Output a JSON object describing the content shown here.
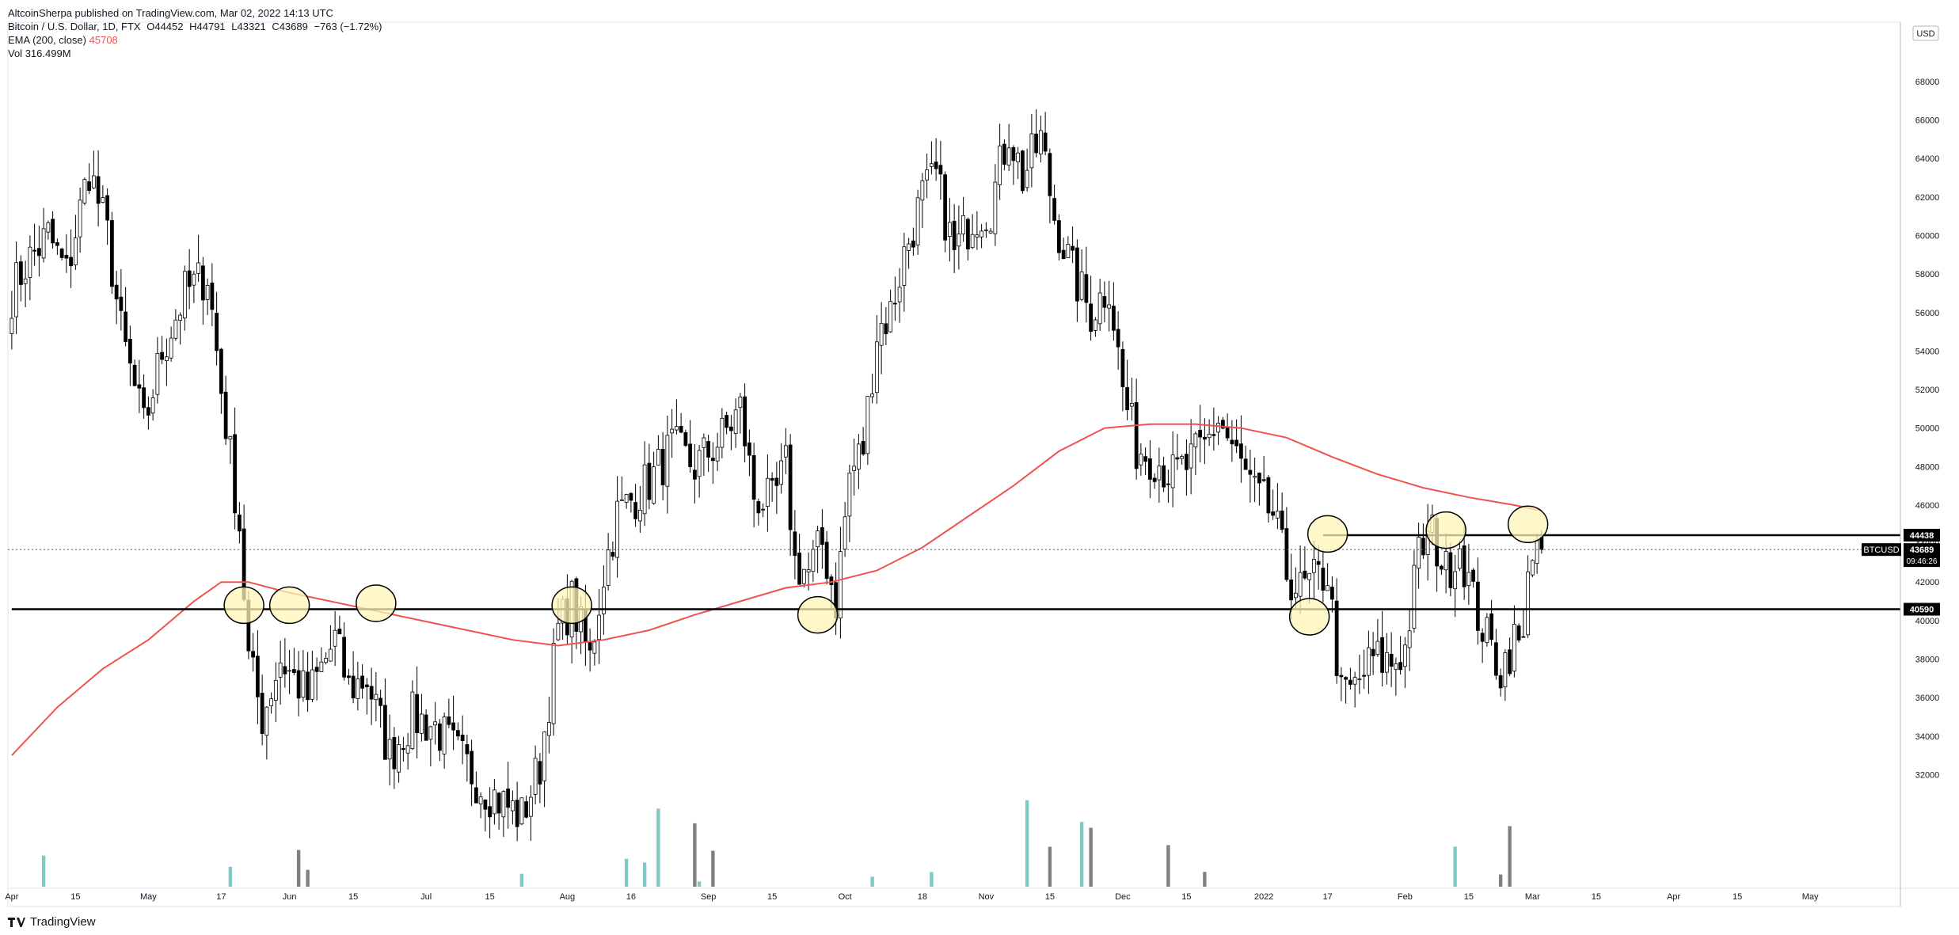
{
  "header": {
    "publisher": "AltcoinSherpa published on TradingView.com, Mar 02, 2022 14:13 UTC",
    "symbol": "Bitcoin / U.S. Dollar, 1D, FTX",
    "open": "O44452",
    "high": "H44791",
    "low": "L43321",
    "close": "C43689",
    "change": "−763 (−1.72%)",
    "ema_label": "EMA (200, close)",
    "ema_value": "45708",
    "vol_label": "Vol",
    "vol_value": "316.499M"
  },
  "footer": {
    "brand": "TradingView"
  },
  "colors": {
    "up": "#000000",
    "down": "#000000",
    "ema": "#ef5350",
    "vol_up": "#7fcbc4",
    "vol_down": "#808080",
    "highlight": "#fff5b8"
  },
  "chart_data": {
    "type": "candlestick",
    "title": "Bitcoin / U.S. Dollar, 1D, FTX",
    "currency": "USD",
    "ylim": [
      27000,
      71000
    ],
    "y_ticks": [
      32000,
      34000,
      36000,
      38000,
      40000,
      42000,
      44000,
      46000,
      48000,
      50000,
      52000,
      54000,
      56000,
      58000,
      60000,
      62000,
      64000,
      66000,
      68000
    ],
    "y_tick_labels": [
      "32000",
      "34000",
      "36000",
      "38000",
      "40000",
      "42000",
      "44000",
      "46000",
      "48000",
      "50000",
      "52000",
      "54000",
      "56000",
      "58000",
      "60000",
      "62000",
      "64000",
      "66000",
      "68000"
    ],
    "x_ticks": [
      {
        "day": 0,
        "label": "Apr"
      },
      {
        "day": 14,
        "label": "15"
      },
      {
        "day": 30,
        "label": "May"
      },
      {
        "day": 46,
        "label": "17"
      },
      {
        "day": 61,
        "label": "Jun"
      },
      {
        "day": 75,
        "label": "15"
      },
      {
        "day": 91,
        "label": "Jul"
      },
      {
        "day": 105,
        "label": "15"
      },
      {
        "day": 122,
        "label": "Aug"
      },
      {
        "day": 136,
        "label": "16"
      },
      {
        "day": 153,
        "label": "Sep"
      },
      {
        "day": 167,
        "label": "15"
      },
      {
        "day": 183,
        "label": "Oct"
      },
      {
        "day": 200,
        "label": "18"
      },
      {
        "day": 214,
        "label": "Nov"
      },
      {
        "day": 228,
        "label": "15"
      },
      {
        "day": 244,
        "label": "Dec"
      },
      {
        "day": 258,
        "label": "15"
      },
      {
        "day": 275,
        "label": "2022"
      },
      {
        "day": 289,
        "label": "17"
      },
      {
        "day": 306,
        "label": "Feb"
      },
      {
        "day": 320,
        "label": "15"
      },
      {
        "day": 334,
        "label": "Mar"
      },
      {
        "day": 348,
        "label": "15"
      },
      {
        "day": 365,
        "label": "Apr"
      },
      {
        "day": 379,
        "label": "15"
      },
      {
        "day": 395,
        "label": "May"
      }
    ],
    "price_anchors": [
      [
        0,
        57000
      ],
      [
        3,
        58500
      ],
      [
        8,
        60000
      ],
      [
        12,
        58000
      ],
      [
        17,
        63500
      ],
      [
        21,
        60000
      ],
      [
        24,
        55000
      ],
      [
        29,
        50000
      ],
      [
        33,
        54000
      ],
      [
        38,
        57000
      ],
      [
        43,
        58000
      ],
      [
        46,
        52000
      ],
      [
        50,
        45000
      ],
      [
        52,
        38000
      ],
      [
        55,
        35000
      ],
      [
        59,
        38000
      ],
      [
        65,
        36000
      ],
      [
        71,
        39000
      ],
      [
        74,
        36500
      ],
      [
        78,
        37000
      ],
      [
        83,
        33000
      ],
      [
        88,
        35000
      ],
      [
        93,
        34500
      ],
      [
        98,
        33000
      ],
      [
        103,
        31500
      ],
      [
        108,
        30500
      ],
      [
        112,
        29800
      ],
      [
        116,
        32500
      ],
      [
        120,
        39500
      ],
      [
        123,
        41000
      ],
      [
        127,
        38000
      ],
      [
        130,
        42500
      ],
      [
        133,
        45500
      ],
      [
        137,
        46500
      ],
      [
        141,
        47500
      ],
      [
        145,
        49000
      ],
      [
        150,
        48000
      ],
      [
        156,
        49500
      ],
      [
        160,
        51000
      ],
      [
        163,
        46500
      ],
      [
        167,
        46000
      ],
      [
        170,
        48000
      ],
      [
        172,
        43000
      ],
      [
        175,
        42500
      ],
      [
        178,
        44000
      ],
      [
        181,
        41000
      ],
      [
        184,
        47500
      ],
      [
        187,
        49000
      ],
      [
        190,
        55000
      ],
      [
        193,
        56000
      ],
      [
        196,
        59000
      ],
      [
        200,
        62000
      ],
      [
        203,
        63000
      ],
      [
        207,
        59000
      ],
      [
        211,
        61000
      ],
      [
        215,
        61500
      ],
      [
        219,
        65500
      ],
      [
        222,
        63000
      ],
      [
        226,
        65000
      ],
      [
        229,
        61000
      ],
      [
        233,
        58000
      ],
      [
        237,
        56000
      ],
      [
        241,
        57500
      ],
      [
        244,
        52000
      ],
      [
        247,
        49000
      ],
      [
        251,
        48500
      ],
      [
        255,
        47500
      ],
      [
        258,
        48000
      ],
      [
        262,
        49000
      ],
      [
        265,
        50500
      ],
      [
        269,
        48500
      ],
      [
        273,
        46500
      ],
      [
        277,
        45500
      ],
      [
        280,
        42500
      ],
      [
        283,
        41500
      ],
      [
        286,
        42000
      ],
      [
        289,
        42500
      ],
      [
        292,
        36000
      ],
      [
        295,
        36500
      ],
      [
        299,
        38000
      ],
      [
        303,
        37800
      ],
      [
        306,
        38500
      ],
      [
        309,
        43500
      ],
      [
        312,
        44500
      ],
      [
        315,
        42500
      ],
      [
        318,
        44000
      ],
      [
        321,
        41000
      ],
      [
        324,
        39000
      ],
      [
        327,
        37500
      ],
      [
        330,
        39000
      ],
      [
        332,
        38500
      ],
      [
        333,
        43500
      ],
      [
        336,
        43689
      ]
    ],
    "ema200": [
      [
        0,
        33000
      ],
      [
        10,
        35500
      ],
      [
        20,
        37500
      ],
      [
        30,
        39000
      ],
      [
        40,
        41000
      ],
      [
        46,
        42000
      ],
      [
        52,
        42000
      ],
      [
        60,
        41500
      ],
      [
        70,
        41000
      ],
      [
        80,
        40500
      ],
      [
        90,
        40000
      ],
      [
        100,
        39500
      ],
      [
        110,
        39000
      ],
      [
        120,
        38700
      ],
      [
        130,
        39000
      ],
      [
        140,
        39500
      ],
      [
        150,
        40300
      ],
      [
        160,
        41000
      ],
      [
        170,
        41700
      ],
      [
        180,
        42000
      ],
      [
        190,
        42600
      ],
      [
        200,
        43800
      ],
      [
        210,
        45400
      ],
      [
        220,
        47000
      ],
      [
        230,
        48800
      ],
      [
        240,
        50000
      ],
      [
        250,
        50200
      ],
      [
        260,
        50200
      ],
      [
        270,
        50000
      ],
      [
        280,
        49500
      ],
      [
        290,
        48500
      ],
      [
        300,
        47600
      ],
      [
        310,
        46900
      ],
      [
        320,
        46400
      ],
      [
        330,
        46000
      ],
      [
        336,
        45708
      ]
    ],
    "horizontal_levels": [
      {
        "price": 44438,
        "label": "44438",
        "start_day": 288
      },
      {
        "price": 40590,
        "label": "40590",
        "start_day": 0
      }
    ],
    "last_price": {
      "value": 43689,
      "label": "43689",
      "countdown": "09:46:26",
      "symbol": "BTCUSD"
    },
    "highlight_circles": [
      {
        "day": 51,
        "price": 40800
      },
      {
        "day": 61,
        "price": 40800
      },
      {
        "day": 80,
        "price": 40900
      },
      {
        "day": 123,
        "price": 40800
      },
      {
        "day": 177,
        "price": 40300
      },
      {
        "day": 285,
        "price": 40200
      },
      {
        "day": 289,
        "price": 44500
      },
      {
        "day": 315,
        "price": 44700
      },
      {
        "day": 333,
        "price": 45000
      }
    ],
    "volume_bars_approx": "bars at bottom, heights approx 19000–31000 on price axis scale",
    "total_days": 337
  }
}
